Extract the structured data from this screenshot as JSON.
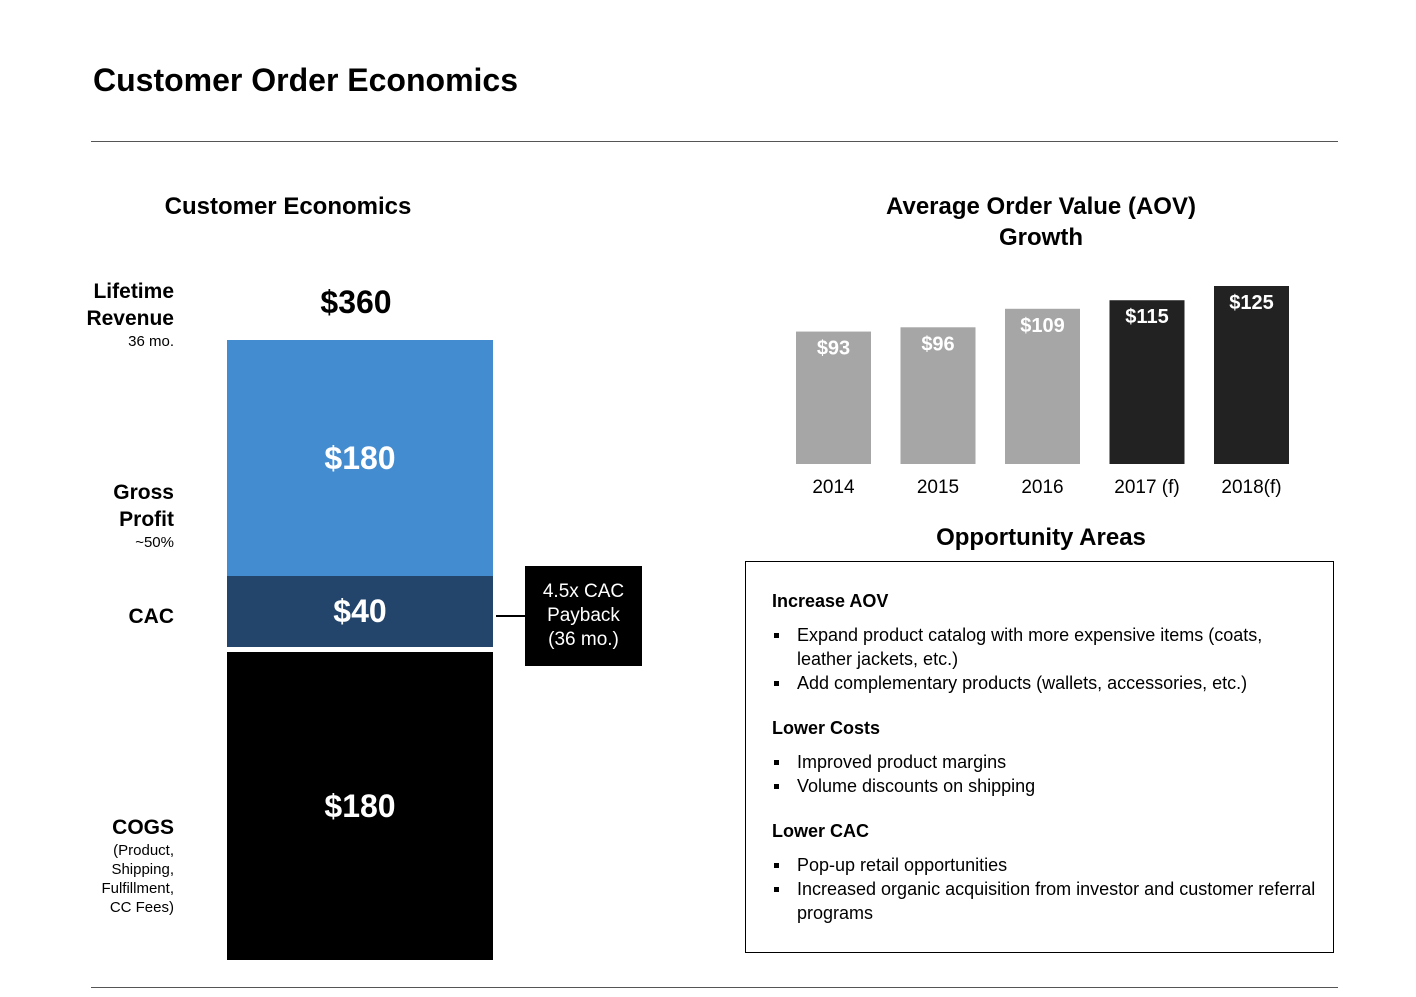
{
  "page": {
    "title": "Customer Order Economics"
  },
  "customer_economics": {
    "title": "Customer Economics",
    "lifetime_revenue": {
      "label_line1": "Lifetime",
      "label_line2": "Revenue",
      "sub": "36 mo.",
      "value": "$360"
    },
    "gross_profit": {
      "label_line1": "Gross",
      "label_line2": "Profit",
      "sub": "~50%",
      "value": "$180"
    },
    "cac": {
      "label": "CAC",
      "value": "$40"
    },
    "cogs": {
      "label": "COGS",
      "sub_lines": [
        "(Product,",
        "Shipping,",
        "Fulfillment,",
        "CC Fees)"
      ],
      "value": "$180"
    },
    "payback": {
      "lines": [
        "4.5x CAC",
        "Payback",
        "(36 mo.)"
      ]
    },
    "colors": {
      "gross_profit": "#438ccf",
      "cac": "#23446b",
      "cogs": "#000000",
      "payback_box": "#000000"
    }
  },
  "chart_data": {
    "type": "bar",
    "title_lines": [
      "Average Order Value (AOV)",
      "Growth"
    ],
    "categories": [
      "2014",
      "2015",
      "2016",
      "2017 (f)",
      "2018(f)"
    ],
    "values": [
      93,
      96,
      109,
      115,
      125
    ],
    "value_labels": [
      "$93",
      "$96",
      "$109",
      "$115",
      "$125"
    ],
    "colors": [
      "#a6a6a6",
      "#a6a6a6",
      "#a6a6a6",
      "#222222",
      "#222222"
    ],
    "ylim": [
      0,
      125
    ],
    "xlabel": "",
    "ylabel": "",
    "grid": false
  },
  "opportunity_areas": {
    "title": "Opportunity Areas",
    "sections": [
      {
        "heading": "Increase AOV",
        "items": [
          "Expand product catalog with more expensive items (coats, leather jackets, etc.)",
          "Add complementary products (wallets, accessories, etc.)"
        ]
      },
      {
        "heading": "Lower Costs",
        "items": [
          "Improved product margins",
          "Volume discounts on shipping"
        ]
      },
      {
        "heading": "Lower CAC",
        "items": [
          "Pop-up retail opportunities",
          "Increased organic acquisition from investor and customer referral programs"
        ]
      }
    ]
  }
}
